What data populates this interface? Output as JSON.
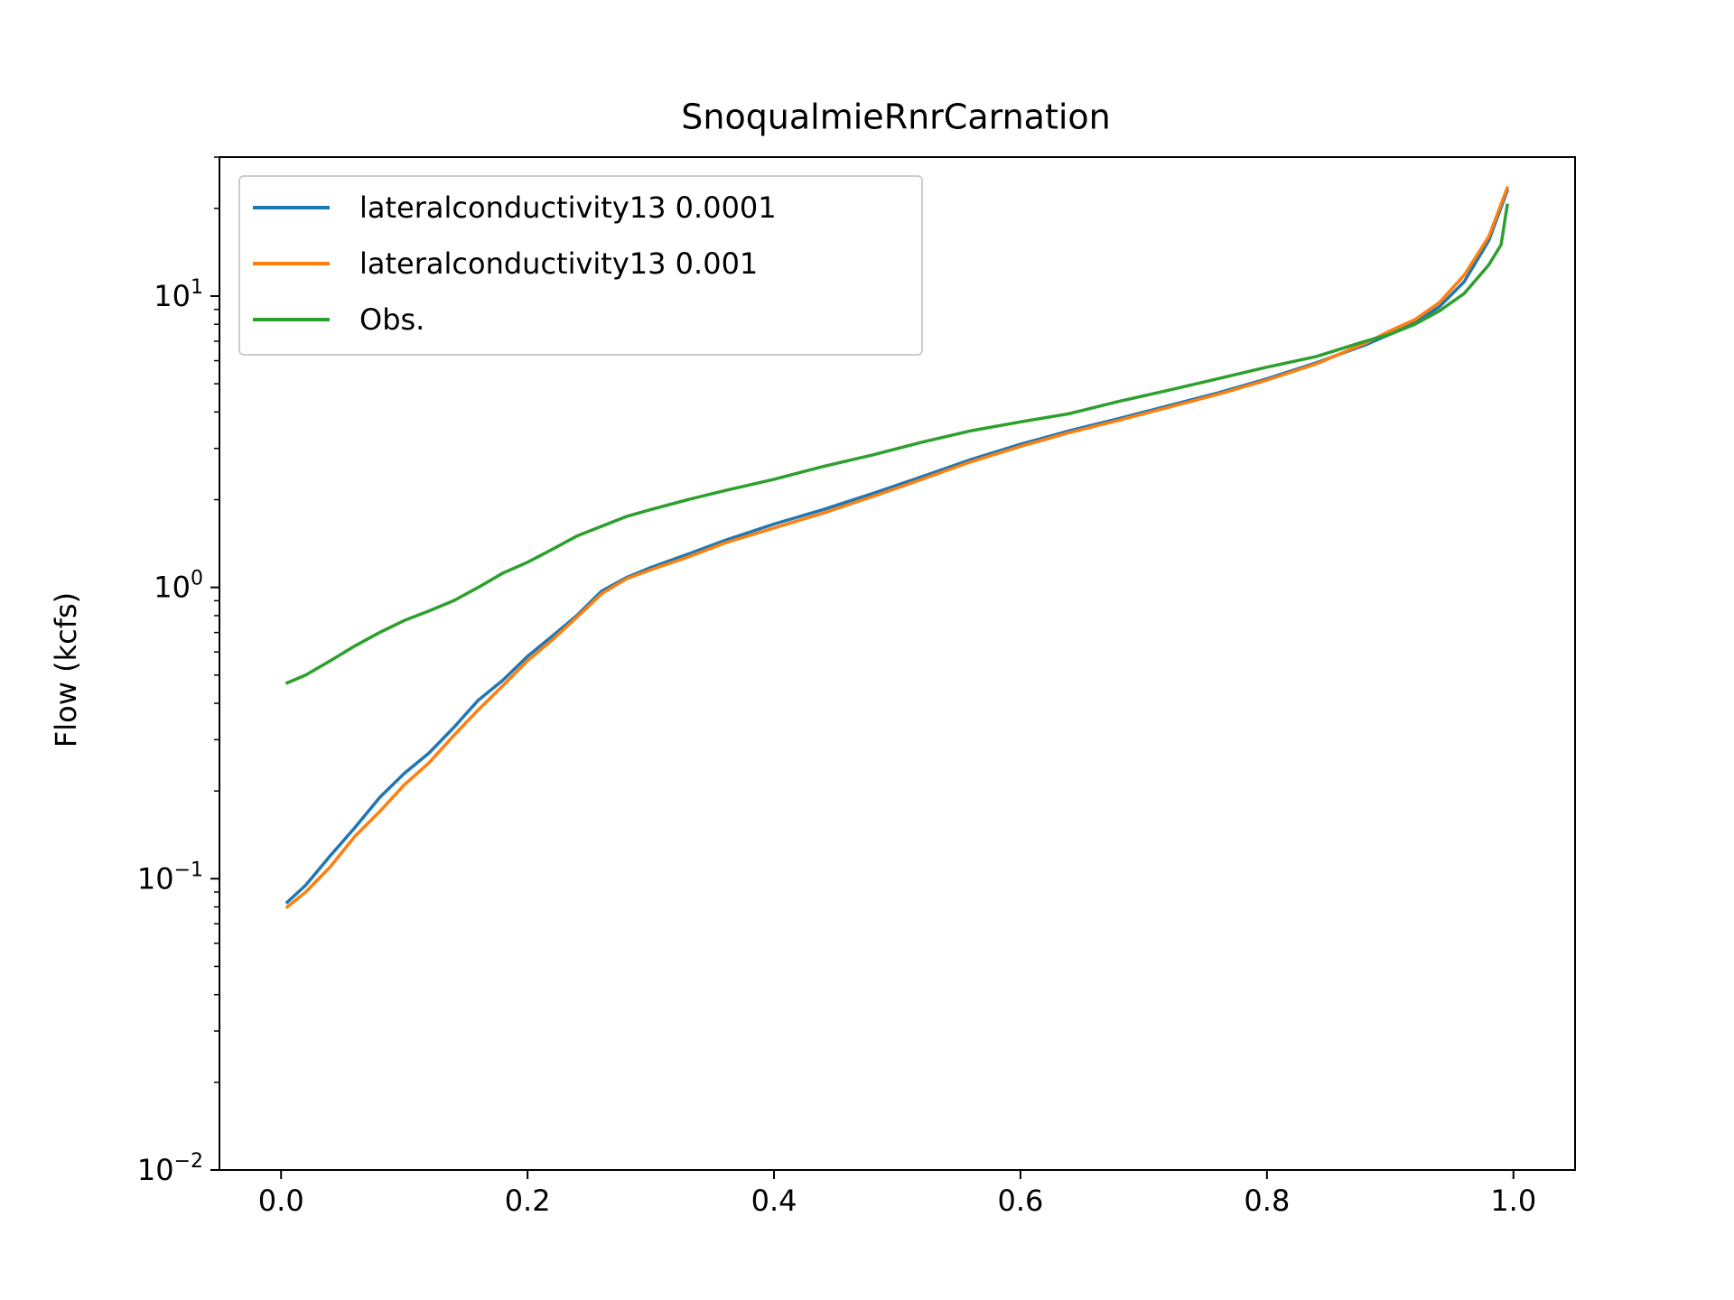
{
  "chart_data": {
    "type": "line",
    "title": "SnoqualmieRnrCarnation",
    "xlabel": "",
    "ylabel": "Flow (kcfs)",
    "xlim": [
      -0.05,
      1.05
    ],
    "ylim": [
      0.01,
      30
    ],
    "yscale": "log",
    "grid": false,
    "legend_position": "top-left",
    "x_ticks": [
      "0.0",
      "0.2",
      "0.4",
      "0.6",
      "0.8",
      "1.0"
    ],
    "y_ticks": [
      {
        "base": "10",
        "exp": "1"
      },
      {
        "base": "10",
        "exp": "0"
      },
      {
        "base": "10",
        "exp": "−1"
      },
      {
        "base": "10",
        "exp": "−2"
      }
    ],
    "series": [
      {
        "name": "lateralconductivity13 0.0001",
        "color": "#1f77b4",
        "x": [
          0.005,
          0.02,
          0.04,
          0.06,
          0.08,
          0.1,
          0.12,
          0.14,
          0.16,
          0.18,
          0.2,
          0.22,
          0.24,
          0.26,
          0.28,
          0.3,
          0.33,
          0.36,
          0.4,
          0.44,
          0.48,
          0.52,
          0.56,
          0.6,
          0.64,
          0.68,
          0.72,
          0.76,
          0.8,
          0.84,
          0.88,
          0.9,
          0.92,
          0.94,
          0.96,
          0.98,
          0.995
        ],
        "y": [
          0.083,
          0.095,
          0.12,
          0.15,
          0.19,
          0.23,
          0.27,
          0.33,
          0.41,
          0.48,
          0.58,
          0.68,
          0.8,
          0.97,
          1.08,
          1.17,
          1.3,
          1.45,
          1.65,
          1.85,
          2.1,
          2.4,
          2.75,
          3.1,
          3.45,
          3.8,
          4.2,
          4.65,
          5.2,
          5.9,
          6.8,
          7.4,
          8.1,
          9.2,
          11.2,
          15.5,
          23.0
        ]
      },
      {
        "name": "lateralconductivity13 0.001",
        "color": "#ff7f0e",
        "x": [
          0.005,
          0.02,
          0.04,
          0.06,
          0.08,
          0.1,
          0.12,
          0.14,
          0.16,
          0.18,
          0.2,
          0.22,
          0.24,
          0.26,
          0.28,
          0.3,
          0.33,
          0.36,
          0.4,
          0.44,
          0.48,
          0.52,
          0.56,
          0.6,
          0.64,
          0.68,
          0.72,
          0.76,
          0.8,
          0.84,
          0.88,
          0.9,
          0.92,
          0.94,
          0.96,
          0.98,
          0.995
        ],
        "y": [
          0.08,
          0.09,
          0.11,
          0.14,
          0.17,
          0.21,
          0.25,
          0.31,
          0.38,
          0.46,
          0.56,
          0.66,
          0.79,
          0.95,
          1.07,
          1.15,
          1.27,
          1.42,
          1.6,
          1.8,
          2.05,
          2.35,
          2.7,
          3.05,
          3.4,
          3.75,
          4.15,
          4.6,
          5.15,
          5.85,
          6.9,
          7.6,
          8.3,
          9.5,
          11.8,
          16.0,
          23.5
        ]
      },
      {
        "name": "Obs.",
        "color": "#2ca02c",
        "x": [
          0.005,
          0.02,
          0.04,
          0.06,
          0.08,
          0.1,
          0.12,
          0.14,
          0.16,
          0.18,
          0.2,
          0.22,
          0.24,
          0.26,
          0.28,
          0.3,
          0.33,
          0.36,
          0.4,
          0.44,
          0.48,
          0.52,
          0.56,
          0.6,
          0.64,
          0.68,
          0.72,
          0.76,
          0.8,
          0.84,
          0.88,
          0.9,
          0.92,
          0.94,
          0.96,
          0.98,
          0.99,
          0.995
        ],
        "y": [
          0.47,
          0.5,
          0.56,
          0.63,
          0.7,
          0.77,
          0.83,
          0.9,
          1.0,
          1.12,
          1.22,
          1.35,
          1.5,
          1.62,
          1.75,
          1.85,
          2.0,
          2.15,
          2.35,
          2.6,
          2.85,
          3.15,
          3.45,
          3.7,
          3.95,
          4.35,
          4.75,
          5.2,
          5.7,
          6.2,
          7.0,
          7.4,
          8.0,
          8.9,
          10.2,
          12.8,
          15.0,
          20.5
        ]
      }
    ]
  }
}
